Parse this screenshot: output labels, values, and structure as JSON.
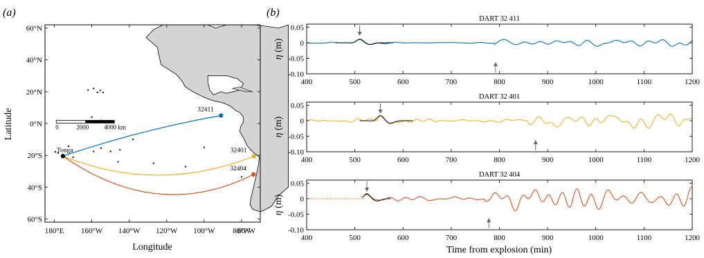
{
  "panel_a": {
    "label": "(a)",
    "xlabel": "Longitude",
    "ylabel": "Latitude",
    "lon_range": [
      175,
      290
    ],
    "lat_range": [
      -62,
      62
    ],
    "xticks": [
      {
        "v": 180,
        "label": "180°E"
      },
      {
        "v": 200,
        "label": "160°W"
      },
      {
        "v": 220,
        "label": "140°W"
      },
      {
        "v": 240,
        "label": "120°W"
      },
      {
        "v": 260,
        "label": "100°W"
      },
      {
        "v": 280,
        "label": "80°W"
      },
      {
        "v": 300,
        "label": "60°W"
      }
    ],
    "yticks": [
      {
        "v": 60,
        "label": "60°N"
      },
      {
        "v": 40,
        "label": "40°N"
      },
      {
        "v": 20,
        "label": "20°N"
      },
      {
        "v": 0,
        "label": "0°N"
      },
      {
        "v": -20,
        "label": "20°S"
      },
      {
        "v": -40,
        "label": "40°S"
      },
      {
        "v": -60,
        "label": "60°S"
      }
    ],
    "source": {
      "name": "Tonga",
      "lon": 184.6,
      "lat": -20.5
    },
    "stations": [
      {
        "id": "32411",
        "lon": 269.0,
        "lat": 5.0,
        "color": "#0072BD"
      },
      {
        "id": "32401",
        "lon": 286.6,
        "lat": -20.5,
        "color": "#EDB120"
      },
      {
        "id": "32404",
        "lon": 286.4,
        "lat": -32.0,
        "color": "#D95319"
      }
    ],
    "scalebar": {
      "labels": [
        "0",
        "2000",
        "4000 km"
      ]
    }
  },
  "panel_b": {
    "label": "(b)",
    "xlabel": "Time from explosion (min)",
    "ylabel_symbol": "η",
    "ylabel_unit": " (m)",
    "xticks": [
      "400",
      "500",
      "600",
      "700",
      "800",
      "900",
      "1000",
      "1100",
      "1200"
    ],
    "yticks": [
      "0.05",
      "0",
      "-0.05",
      "-0.10"
    ]
  },
  "chart_data": [
    {
      "type": "line",
      "title": "DART 32 411",
      "color": "#0072BD",
      "xlim": [
        400,
        1200
      ],
      "ylim": [
        -0.1,
        0.06
      ],
      "start": 400,
      "amp": 0.015,
      "activity_start": 790,
      "arrows": [
        {
          "t": 510,
          "dir": "down"
        },
        {
          "t": 792,
          "dir": "up"
        }
      ],
      "model": {
        "start": 460,
        "end": 580,
        "peak_t": 510,
        "peak": 0.011
      }
    },
    {
      "type": "line",
      "title": "DART 32 401",
      "color": "#EDB120",
      "xlim": [
        400,
        1200
      ],
      "ylim": [
        -0.1,
        0.06
      ],
      "start": 400,
      "amp": 0.03,
      "activity_start": 860,
      "arrows": [
        {
          "t": 553,
          "dir": "down"
        },
        {
          "t": 875,
          "dir": "up"
        }
      ],
      "model": {
        "start": 510,
        "end": 620,
        "peak_t": 553,
        "peak": 0.016
      }
    },
    {
      "type": "line",
      "title": "DART 32 404",
      "color": "#D95319",
      "xlim": [
        400,
        1200
      ],
      "ylim": [
        -0.1,
        0.06
      ],
      "start": 520,
      "amp": 0.035,
      "activity_start": 770,
      "arrows": [
        {
          "t": 525,
          "dir": "down"
        },
        {
          "t": 778,
          "dir": "up"
        }
      ],
      "model": {
        "start": 515,
        "end": 575,
        "peak_t": 525,
        "peak": 0.014
      }
    }
  ]
}
